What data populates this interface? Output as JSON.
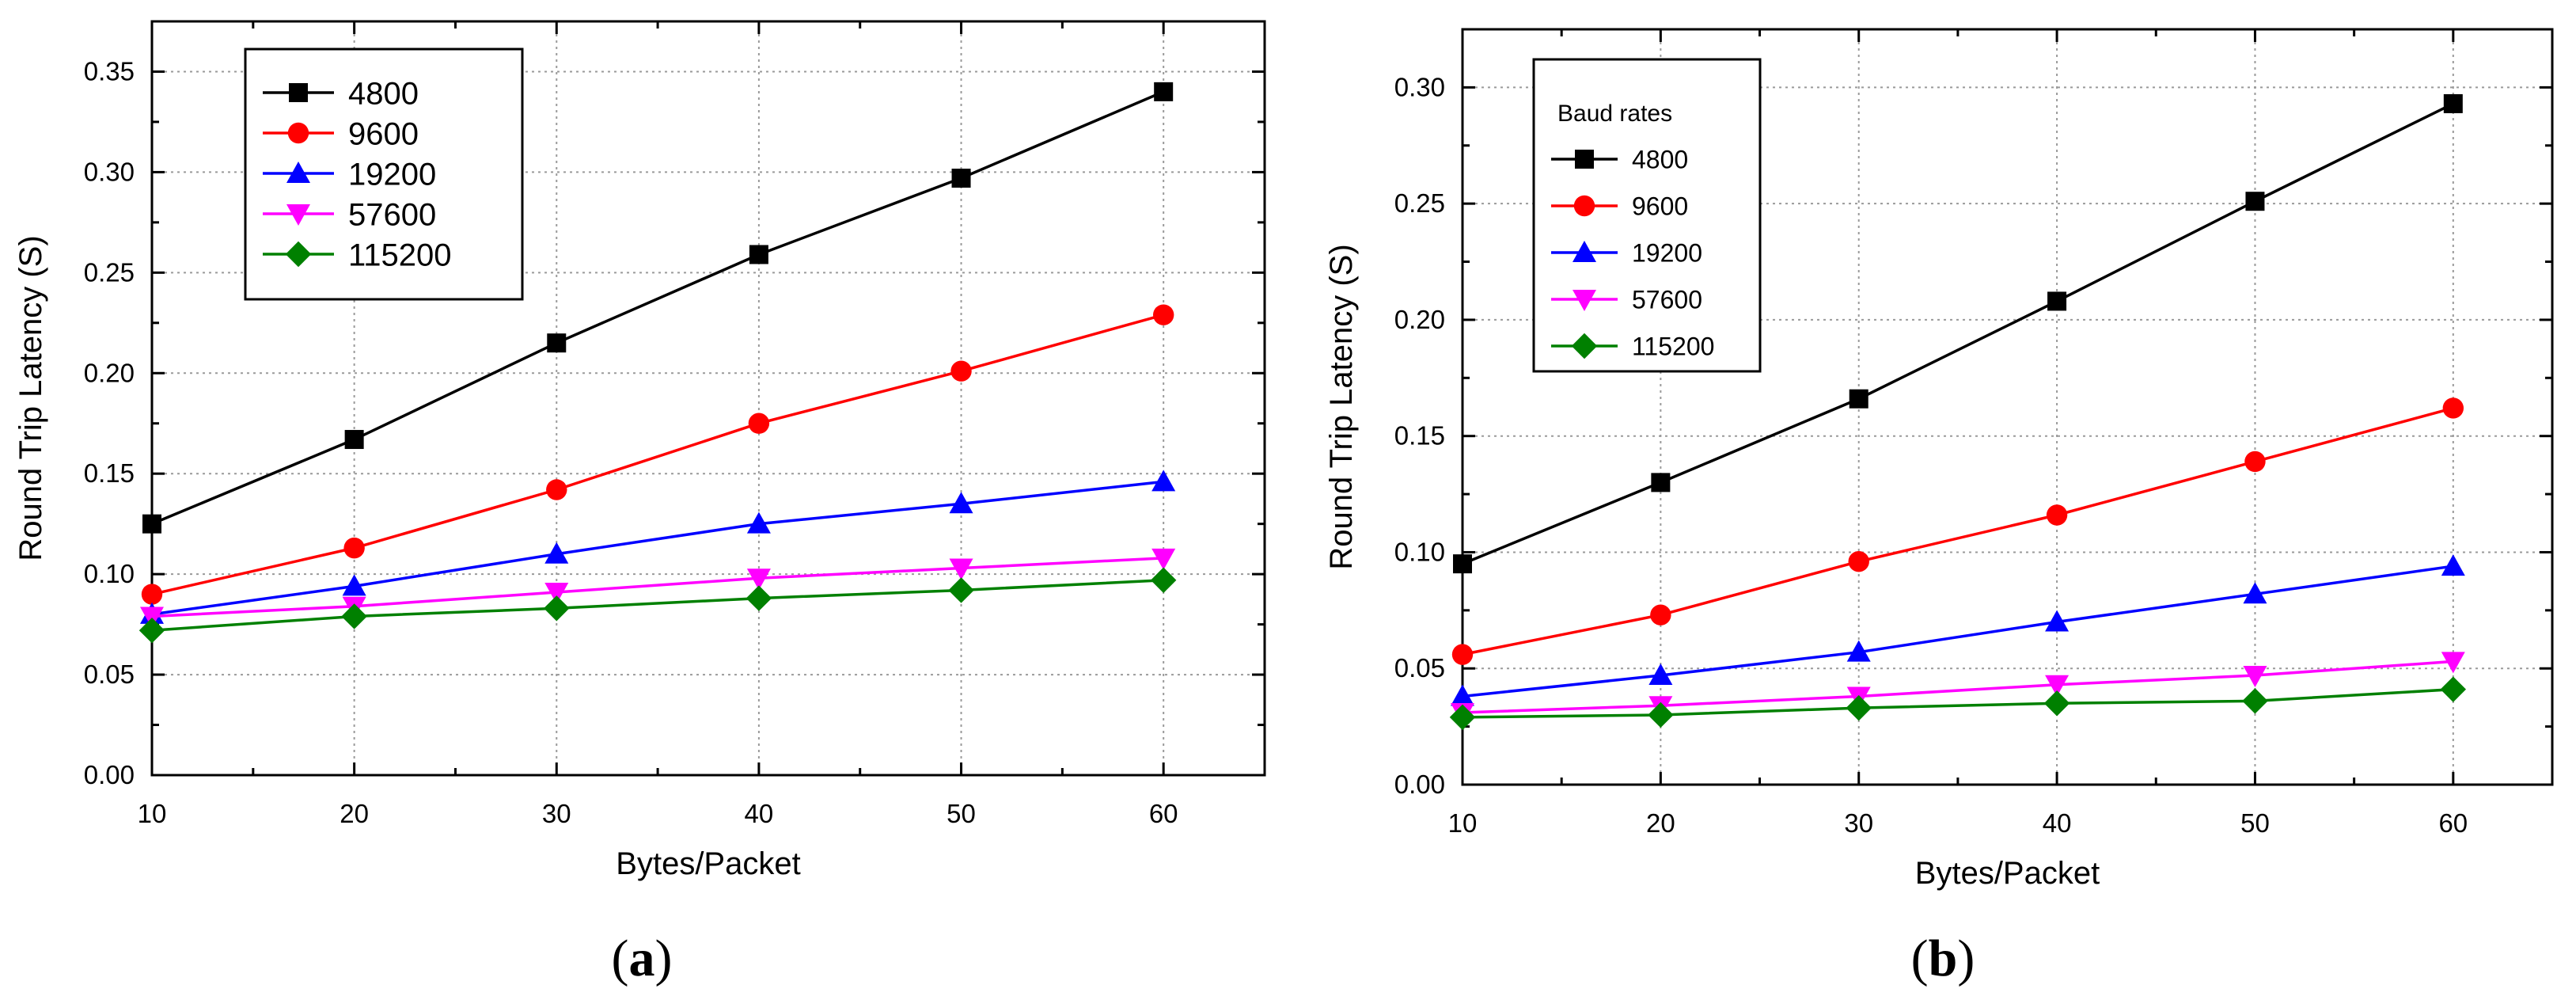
{
  "chart_data": [
    {
      "type": "line",
      "panel_label": "(a)",
      "panel_letter": "a",
      "xlabel": "Bytes/Packet",
      "ylabel": "Round Trip Latency (S)",
      "xlim": [
        10,
        65
      ],
      "ylim": [
        0,
        0.375
      ],
      "xticks": [
        10,
        20,
        30,
        40,
        50,
        60
      ],
      "xtick_labels": [
        "10",
        "20",
        "30",
        "40",
        "50",
        "60"
      ],
      "yticks": [
        0,
        0.05,
        0.1,
        0.15,
        0.2,
        0.25,
        0.3,
        0.35
      ],
      "ytick_labels": [
        "0.00",
        "0.05",
        "0.10",
        "0.15",
        "0.20",
        "0.25",
        "0.30",
        "0.35"
      ],
      "grid": true,
      "legend_title": "",
      "legend_position": "top-left",
      "x": [
        10,
        20,
        30,
        40,
        50,
        60
      ],
      "series": [
        {
          "name": "4800",
          "color": "#000000",
          "marker": "square",
          "values": [
            0.125,
            0.167,
            0.215,
            0.259,
            0.297,
            0.34
          ]
        },
        {
          "name": "9600",
          "color": "#ff0000",
          "marker": "circle",
          "values": [
            0.09,
            0.113,
            0.142,
            0.175,
            0.201,
            0.229
          ]
        },
        {
          "name": "19200",
          "color": "#0000ff",
          "marker": "triangle-up",
          "values": [
            0.08,
            0.094,
            0.11,
            0.125,
            0.135,
            0.146
          ]
        },
        {
          "name": "57600",
          "color": "#ff00ff",
          "marker": "triangle-down",
          "values": [
            0.079,
            0.084,
            0.091,
            0.098,
            0.103,
            0.108
          ]
        },
        {
          "name": "115200",
          "color": "#008000",
          "marker": "diamond",
          "values": [
            0.072,
            0.079,
            0.083,
            0.088,
            0.092,
            0.097
          ]
        }
      ]
    },
    {
      "type": "line",
      "panel_label": "(b)",
      "panel_letter": "b",
      "xlabel": "Bytes/Packet",
      "ylabel": "Round Trip Latency (S)",
      "xlim": [
        10,
        65
      ],
      "ylim": [
        0,
        0.325
      ],
      "xticks": [
        10,
        20,
        30,
        40,
        50,
        60
      ],
      "xtick_labels": [
        "10",
        "20",
        "30",
        "40",
        "50",
        "60"
      ],
      "yticks": [
        0,
        0.05,
        0.1,
        0.15,
        0.2,
        0.25,
        0.3
      ],
      "ytick_labels": [
        "0.00",
        "0.05",
        "0.10",
        "0.15",
        "0.20",
        "0.25",
        "0.30"
      ],
      "grid": true,
      "legend_title": "Baud rates",
      "legend_position": "top-left",
      "x": [
        10,
        20,
        30,
        40,
        50,
        60
      ],
      "series": [
        {
          "name": "4800",
          "color": "#000000",
          "marker": "square",
          "values": [
            0.095,
            0.13,
            0.166,
            0.208,
            0.251,
            0.293
          ]
        },
        {
          "name": "9600",
          "color": "#ff0000",
          "marker": "circle",
          "values": [
            0.056,
            0.073,
            0.096,
            0.116,
            0.139,
            0.162
          ]
        },
        {
          "name": "19200",
          "color": "#0000ff",
          "marker": "triangle-up",
          "values": [
            0.038,
            0.047,
            0.057,
            0.07,
            0.082,
            0.094
          ]
        },
        {
          "name": "57600",
          "color": "#ff00ff",
          "marker": "triangle-down",
          "values": [
            0.031,
            0.034,
            0.038,
            0.043,
            0.047,
            0.053
          ]
        },
        {
          "name": "115200",
          "color": "#008000",
          "marker": "diamond",
          "values": [
            0.029,
            0.03,
            0.033,
            0.035,
            0.036,
            0.041
          ]
        }
      ]
    }
  ]
}
